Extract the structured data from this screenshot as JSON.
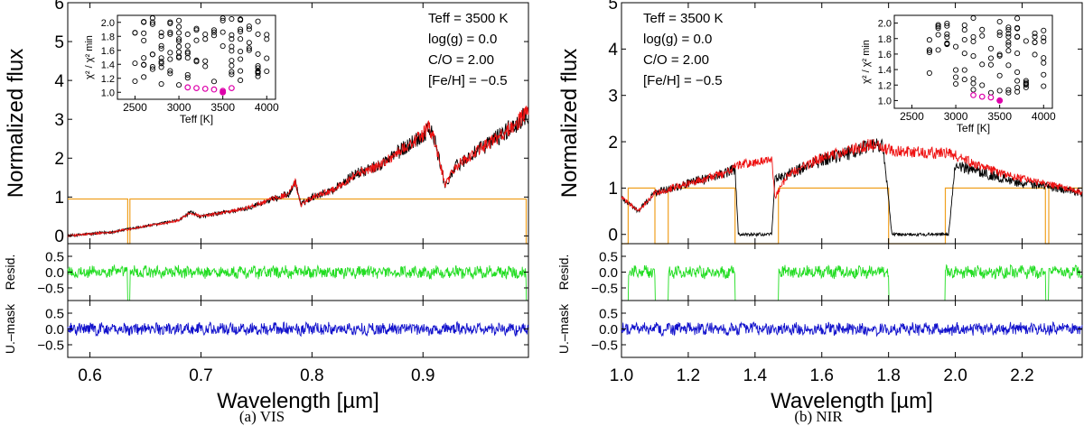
{
  "figure": {
    "captions": [
      "(a) VIS",
      "(b) NIR"
    ],
    "colors": {
      "observed": "#000000",
      "model": "#ee1111",
      "mask": "#f0a020",
      "resid_masked": "#22dd22",
      "resid_unmasked": "#1111cc",
      "inset_point": "#000000",
      "inset_best": "#dd00aa"
    }
  },
  "chart_data": [
    {
      "id": "vis",
      "type": "line",
      "caption": "(a) VIS",
      "xlabel": "Wavelength [µm]",
      "xlim": [
        0.58,
        0.995
      ],
      "xticks": [
        0.6,
        0.7,
        0.8,
        0.9
      ],
      "xtick_labels": [
        "0.6",
        "0.7",
        "0.8",
        "0.9"
      ],
      "main": {
        "ylabel": "Normalized flux",
        "ylim": [
          -0.2,
          6
        ],
        "yticks": [
          0,
          1,
          2,
          3,
          4,
          5,
          6
        ],
        "ytick_labels": [
          "0",
          "1",
          "2",
          "3",
          "4",
          "5",
          "6"
        ],
        "flux_x": [
          0.58,
          0.6,
          0.62,
          0.64,
          0.66,
          0.68,
          0.69,
          0.7,
          0.72,
          0.74,
          0.76,
          0.78,
          0.785,
          0.79,
          0.8,
          0.82,
          0.84,
          0.86,
          0.88,
          0.9,
          0.905,
          0.91,
          0.92,
          0.93,
          0.94,
          0.96,
          0.98,
          0.995
        ],
        "flux_y": [
          0.0,
          0.05,
          0.1,
          0.2,
          0.3,
          0.4,
          0.6,
          0.5,
          0.6,
          0.7,
          0.9,
          1.1,
          1.4,
          0.8,
          1.0,
          1.2,
          1.6,
          1.8,
          2.2,
          2.6,
          2.8,
          2.5,
          1.3,
          1.8,
          2.0,
          2.4,
          2.8,
          3.2
        ],
        "mask_x": [
          0.58,
          0.634,
          0.634,
          0.636,
          0.636,
          0.642,
          0.642,
          0.993,
          0.993,
          0.995
        ],
        "mask_y": [
          0.95,
          0.95,
          -0.2,
          -0.2,
          0.95,
          0.95,
          0.95,
          0.95,
          -0.2,
          -0.2
        ],
        "params": [
          "Teff = 3500 K",
          "log(g) = 0.0",
          "C/O = 2.00",
          "[Fe/H] = −0.5"
        ],
        "params_position": "top-right"
      },
      "resid_masked": {
        "ylabel": "Resid.",
        "ylim": [
          -0.9,
          0.9
        ],
        "yticks": [
          0.5,
          0.0,
          -0.5
        ],
        "ytick_labels": [
          "0.5",
          "0.0",
          "−0.5"
        ]
      },
      "resid_unmasked": {
        "ylabel": "U.–mask",
        "ylim": [
          -0.9,
          0.9
        ],
        "yticks": [
          0.5,
          0.0,
          -0.5
        ],
        "ytick_labels": [
          "0.5",
          "0.0",
          "−0.5"
        ]
      },
      "inset": {
        "position": "top-left",
        "xlabel": "Teff [K]",
        "ylabel": "χ² / χ² min",
        "xlim": [
          2300,
          4100
        ],
        "ylim": [
          0.9,
          2.1
        ],
        "xticks": [
          2500,
          3000,
          3500,
          4000
        ],
        "xtick_labels": [
          "2500",
          "3000",
          "3500",
          "4000"
        ],
        "yticks": [
          1.0,
          1.2,
          1.4,
          1.6,
          1.8,
          2.0
        ],
        "ytick_labels": [
          "1.0",
          "1.2",
          "1.4",
          "1.6",
          "1.8",
          "2.0"
        ],
        "grid_teff": [
          2500,
          2600,
          2700,
          2800,
          2900,
          3000,
          3100,
          3200,
          3300,
          3400,
          3500,
          3600,
          3700,
          3800,
          3900,
          4000
        ],
        "best": [
          [
            3100,
            1.07
          ],
          [
            3200,
            1.06
          ],
          [
            3300,
            1.05
          ],
          [
            3400,
            1.04
          ],
          [
            3500,
            1.02
          ],
          [
            3600,
            1.06
          ]
        ],
        "best_filled": [
          3500,
          1.0
        ]
      }
    },
    {
      "id": "nir",
      "type": "line",
      "caption": "(b) NIR",
      "xlabel": "Wavelength [µm]",
      "xlim": [
        1.0,
        2.38
      ],
      "xticks": [
        1.0,
        1.2,
        1.4,
        1.6,
        1.8,
        2.0,
        2.2
      ],
      "xtick_labels": [
        "1.0",
        "1.2",
        "1.4",
        "1.6",
        "1.8",
        "2.0",
        "2.2"
      ],
      "main": {
        "ylabel": "Normalized flux",
        "ylim": [
          -0.2,
          5
        ],
        "yticks": [
          0,
          1,
          2,
          3,
          4,
          5
        ],
        "ytick_labels": [
          "0",
          "1",
          "2",
          "3",
          "4",
          "5"
        ],
        "flux_x": [
          1.0,
          1.05,
          1.1,
          1.15,
          1.2,
          1.25,
          1.3,
          1.34,
          1.35,
          1.45,
          1.46,
          1.5,
          1.6,
          1.7,
          1.75,
          1.78,
          1.79,
          1.81,
          1.98,
          2.0,
          2.1,
          2.2,
          2.3,
          2.38
        ],
        "flux_y": [
          0.8,
          0.5,
          0.9,
          1.0,
          1.1,
          1.2,
          1.3,
          1.4,
          0.0,
          0.0,
          1.2,
          1.3,
          1.6,
          1.8,
          1.9,
          1.9,
          1.5,
          0.0,
          0.0,
          1.5,
          1.3,
          1.1,
          1.0,
          0.9
        ],
        "model_y": [
          0.8,
          0.5,
          0.9,
          1.0,
          1.1,
          1.2,
          1.3,
          1.45,
          1.5,
          1.6,
          0.8,
          1.3,
          1.65,
          1.85,
          1.95,
          1.9,
          1.85,
          1.8,
          1.75,
          1.7,
          1.4,
          1.2,
          1.05,
          0.9
        ],
        "mask_x": [
          1.0,
          1.02,
          1.02,
          1.1,
          1.1,
          1.14,
          1.14,
          1.34,
          1.34,
          1.47,
          1.47,
          1.8,
          1.8,
          1.97,
          1.97,
          2.27,
          2.27,
          2.28,
          2.28,
          2.38
        ],
        "mask_y": [
          -0.2,
          -0.2,
          1.0,
          1.0,
          -0.2,
          -0.2,
          1.0,
          1.0,
          -0.2,
          -0.2,
          1.0,
          1.0,
          -0.2,
          -0.2,
          1.0,
          1.0,
          -0.2,
          -0.2,
          1.0,
          1.0
        ],
        "params": [
          "Teff = 3500 K",
          "log(g) = 0.0",
          "C/O = 2.00",
          "[Fe/H] = −0.5"
        ],
        "params_position": "top-left"
      },
      "resid_masked": {
        "ylabel": "Resid.",
        "ylim": [
          -0.9,
          0.9
        ],
        "yticks": [
          0.5,
          0.0,
          -0.5
        ],
        "ytick_labels": [
          "0.5",
          "0.0",
          "−0.5"
        ]
      },
      "resid_unmasked": {
        "ylabel": "U.–mask",
        "ylim": [
          -0.9,
          0.9
        ],
        "yticks": [
          0.5,
          0.0,
          -0.5
        ],
        "ytick_labels": [
          "0.5",
          "0.0",
          "−0.5"
        ]
      },
      "inset": {
        "position": "top-right",
        "xlabel": "Teff [K]",
        "ylabel": "χ² / χ² min",
        "xlim": [
          2300,
          4100
        ],
        "ylim": [
          0.9,
          2.1
        ],
        "xticks": [
          2500,
          3000,
          3500,
          4000
        ],
        "xtick_labels": [
          "2500",
          "3000",
          "3500",
          "4000"
        ],
        "yticks": [
          1.0,
          1.2,
          1.4,
          1.6,
          1.8,
          2.0
        ],
        "ytick_labels": [
          "1.0",
          "1.2",
          "1.4",
          "1.6",
          "1.8",
          "2.0"
        ],
        "grid_teff": [
          2700,
          2800,
          2900,
          3000,
          3100,
          3200,
          3300,
          3400,
          3500,
          3600,
          3700,
          3800,
          3900,
          4000
        ],
        "best": [
          [
            3200,
            1.07
          ],
          [
            3300,
            1.05
          ],
          [
            3400,
            1.04
          ]
        ],
        "best_filled": [
          3500,
          1.0
        ]
      }
    }
  ]
}
